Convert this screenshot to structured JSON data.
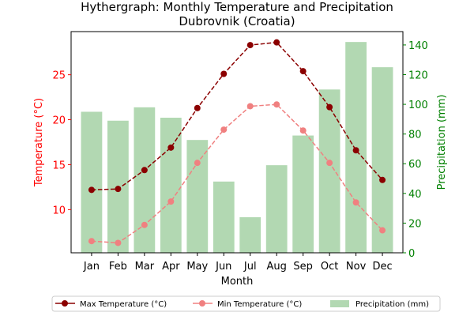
{
  "chart_data": {
    "type": "bar+line",
    "title_line1": "Hythergraph: Monthly Temperature and Precipitation",
    "title_line2": "Dubrovnik (Croatia)",
    "xlabel": "Month",
    "ylabel_left": "Temperature (°C)",
    "ylabel_right": "Precipitation (mm)",
    "categories": [
      "Jan",
      "Feb",
      "Mar",
      "Apr",
      "May",
      "Jun",
      "Jul",
      "Aug",
      "Sep",
      "Oct",
      "Nov",
      "Dec"
    ],
    "ylim_left": [
      5.2,
      29.8
    ],
    "yticks_left": [
      10,
      15,
      20,
      25
    ],
    "ylim_right": [
      0,
      149
    ],
    "yticks_right": [
      0,
      20,
      40,
      60,
      80,
      100,
      120,
      140
    ],
    "legend_position": "bottom-center",
    "series": [
      {
        "name": "Max Temperature (°C)",
        "kind": "line",
        "axis": "left",
        "color": "#8b0000",
        "dashed": true,
        "values": [
          12.2,
          12.3,
          14.4,
          16.9,
          21.3,
          25.1,
          28.3,
          28.6,
          25.4,
          21.4,
          16.6,
          13.3
        ]
      },
      {
        "name": "Min Temperature (°C)",
        "kind": "line",
        "axis": "left",
        "color": "#f08080",
        "dashed": true,
        "values": [
          6.5,
          6.3,
          8.3,
          10.9,
          15.2,
          18.9,
          21.5,
          21.7,
          18.8,
          15.2,
          10.8,
          7.7
        ]
      },
      {
        "name": "Precipitation (mm)",
        "kind": "bar",
        "axis": "right",
        "color": "#b2d8b2",
        "values": [
          95,
          89,
          98,
          91,
          76,
          48,
          24,
          59,
          79,
          110,
          142,
          125
        ]
      }
    ],
    "colors": {
      "left_axis": "#ff0000",
      "right_axis": "#008000",
      "max_line": "#8b0000",
      "min_line": "#f08080",
      "bars": "#b2d8b2"
    }
  }
}
